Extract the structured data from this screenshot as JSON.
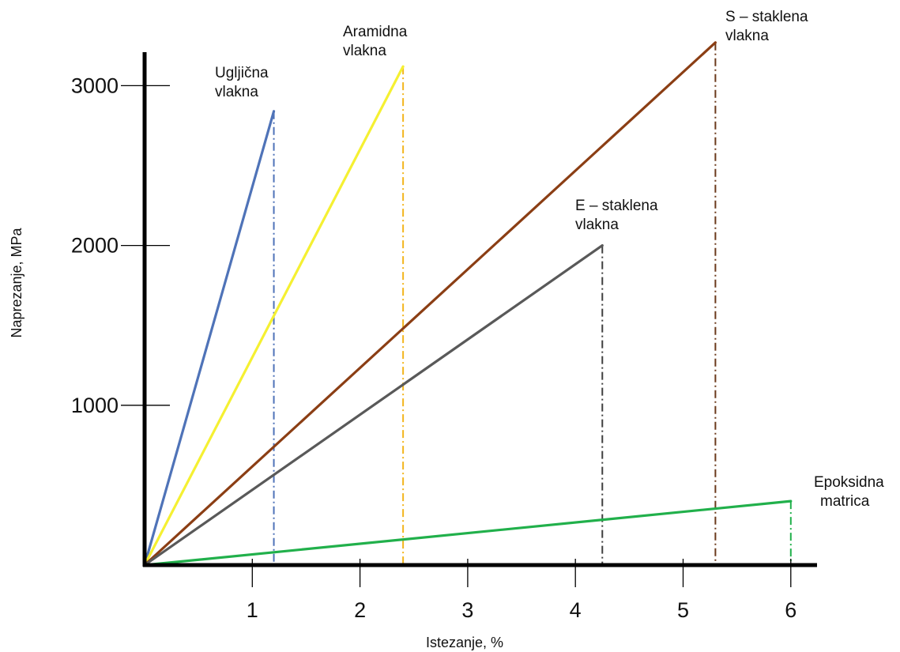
{
  "chart_data": {
    "type": "line",
    "xlabel": "Istezanje, %",
    "ylabel": "Naprezanje, MPa",
    "xlim": [
      0,
      6.2
    ],
    "ylim": [
      0,
      3000
    ],
    "x_ticks": [
      "1",
      "2",
      "3",
      "4",
      "5",
      "6"
    ],
    "y_ticks": [
      "1000",
      "2000",
      "3000"
    ],
    "grid": false,
    "series": [
      {
        "name_lines": [
          "Ugljična",
          "vlakna"
        ],
        "color": "#4f73b8",
        "drop_color": "#4f73b8",
        "x": [
          0,
          1.2
        ],
        "y": [
          0,
          2840
        ]
      },
      {
        "name_lines": [
          "Aramidna",
          "vlakna"
        ],
        "color": "#f5f032",
        "drop_color": "#f2b51e",
        "x": [
          0,
          2.4
        ],
        "y": [
          0,
          3120
        ]
      },
      {
        "name_lines": [
          "S – staklena",
          "vlakna"
        ],
        "color": "#8b3e14",
        "drop_color": "#6b3a1c",
        "x": [
          0,
          5.3
        ],
        "y": [
          0,
          3270
        ]
      },
      {
        "name_lines": [
          "E – staklena",
          "vlakna"
        ],
        "color": "#595959",
        "drop_color": "#3f3f3f",
        "x": [
          0,
          4.25
        ],
        "y": [
          0,
          2000
        ]
      },
      {
        "name_lines": [
          "Epoksidna",
          "matrica"
        ],
        "color": "#21b04b",
        "drop_color": "#21b04b",
        "x": [
          0,
          6.0
        ],
        "y": [
          0,
          400
        ]
      }
    ]
  }
}
